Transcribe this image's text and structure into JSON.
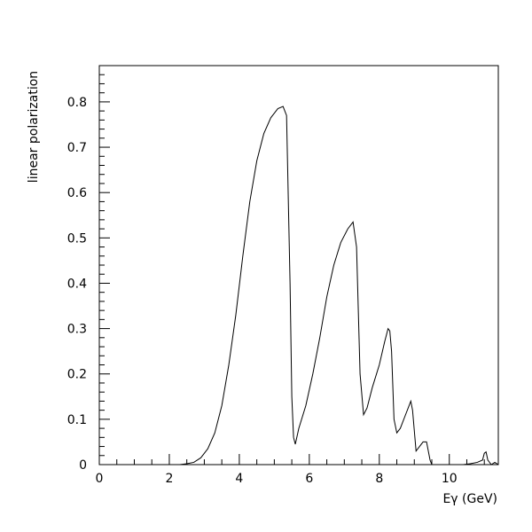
{
  "chart_data": {
    "type": "line",
    "xlabel": "Eγ (GeV)",
    "ylabel": "linear polarization",
    "xlim": [
      0,
      11.4
    ],
    "ylim": [
      0,
      0.88
    ],
    "grid": false,
    "x_ticks": [
      "0",
      "2",
      "4",
      "6",
      "8",
      "10"
    ],
    "y_ticks": [
      "0",
      "0.1",
      "0.2",
      "0.3",
      "0.4",
      "0.5",
      "0.6",
      "0.7",
      "0.8"
    ],
    "series": [
      {
        "x": [
          0,
          2.3,
          2.5,
          2.7,
          2.9,
          3.1,
          3.3,
          3.5,
          3.7,
          3.9,
          4.1,
          4.3,
          4.5,
          4.7,
          4.9,
          5.1,
          5.25,
          5.35,
          5.45,
          5.5,
          5.55,
          5.6,
          5.7,
          5.9,
          6.1,
          6.3,
          6.5,
          6.7,
          6.9,
          7.1,
          7.25,
          7.35,
          7.45,
          7.55,
          7.65,
          7.8,
          8.0,
          8.15,
          8.25,
          8.3,
          8.35,
          8.42,
          8.5,
          8.6,
          8.75,
          8.9,
          8.95,
          9.05,
          9.25,
          9.35,
          9.45,
          9.5,
          9.6,
          10.4,
          10.6,
          10.8,
          10.95,
          11.0,
          11.05,
          11.1,
          11.2,
          11.3,
          11.4
        ],
        "y": [
          0,
          0,
          0.002,
          0.005,
          0.015,
          0.035,
          0.07,
          0.13,
          0.22,
          0.33,
          0.46,
          0.58,
          0.67,
          0.73,
          0.765,
          0.785,
          0.79,
          0.77,
          0.4,
          0.15,
          0.06,
          0.045,
          0.08,
          0.13,
          0.2,
          0.28,
          0.37,
          0.44,
          0.49,
          0.52,
          0.535,
          0.48,
          0.2,
          0.11,
          0.125,
          0.17,
          0.22,
          0.27,
          0.3,
          0.295,
          0.25,
          0.1,
          0.07,
          0.08,
          0.11,
          0.14,
          0.12,
          0.03,
          0.05,
          0.05,
          0.01,
          0,
          0,
          0,
          0.002,
          0.005,
          0.01,
          0.025,
          0.028,
          0.01,
          0,
          0.005,
          0
        ]
      }
    ]
  }
}
